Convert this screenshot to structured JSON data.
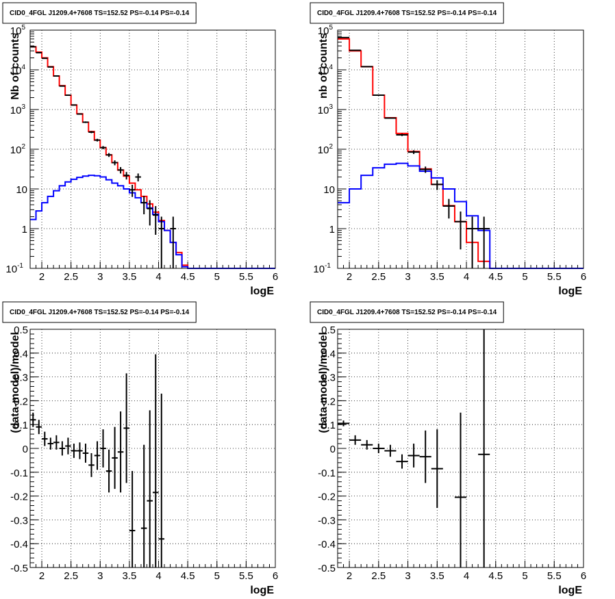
{
  "chart_data": [
    {
      "type": "histogram",
      "title": "CID0_4FGL J1209.4+7608 TS=152.52 PS=-0.14 PS=-0.14",
      "xlabel": "logE",
      "ylabel": "Nb of counts",
      "xlim": [
        1.8,
        6.0
      ],
      "ylim": [
        0.1,
        100000
      ],
      "yscale": "log",
      "grid": true,
      "xticks": [
        "2",
        "2.5",
        "3",
        "3.5",
        "4",
        "4.5",
        "5",
        "5.5",
        "6"
      ],
      "yticks": [
        "10^-1",
        "1",
        "10",
        "10^2",
        "10^3",
        "10^4",
        "10^5"
      ],
      "series": [
        {
          "color": "#ff0000",
          "bin_edges": [
            1.8,
            1.9,
            2.0,
            2.1,
            2.2,
            2.3,
            2.4,
            2.5,
            2.6,
            2.7,
            2.8,
            2.9,
            3.0,
            3.1,
            3.2,
            3.3,
            3.4,
            3.5,
            3.6,
            3.7,
            3.8,
            3.9,
            4.0,
            4.1,
            4.2,
            4.3,
            4.4,
            4.5,
            4.6,
            4.7,
            6.0
          ],
          "values": [
            38000,
            28000,
            20000,
            12000,
            7000,
            4000,
            2300,
            1300,
            780,
            480,
            280,
            170,
            110,
            72,
            46,
            30,
            21,
            14,
            9.5,
            6.5,
            4.2,
            2.6,
            1.6,
            0.9,
            0.45,
            0.25,
            0.12,
            0.1,
            0.1,
            0.1
          ]
        },
        {
          "color": "#0000ff",
          "bin_edges": [
            1.8,
            1.9,
            2.0,
            2.1,
            2.2,
            2.3,
            2.4,
            2.5,
            2.6,
            2.7,
            2.8,
            2.9,
            3.0,
            3.1,
            3.2,
            3.3,
            3.4,
            3.5,
            3.6,
            3.7,
            3.8,
            3.9,
            4.0,
            4.1,
            4.2,
            4.3,
            4.4,
            4.5,
            4.6,
            4.7,
            6.0
          ],
          "values": [
            1.7,
            2.8,
            4.5,
            6.5,
            9,
            12,
            15,
            17.5,
            19.5,
            21,
            22,
            21.5,
            20,
            17,
            14,
            12,
            10,
            8,
            6,
            4.5,
            3.3,
            2.3,
            1.5,
            0.9,
            0.45,
            0.22,
            0.11,
            0.1,
            0.1,
            0.1
          ]
        },
        {
          "color": "#000000",
          "marker": "errorbar",
          "x": [
            1.85,
            1.95,
            2.05,
            2.15,
            2.25,
            2.35,
            2.45,
            2.55,
            2.65,
            2.75,
            2.85,
            2.95,
            3.05,
            3.15,
            3.25,
            3.35,
            3.45,
            3.55,
            3.65,
            3.75,
            3.85,
            3.95,
            4.05,
            4.25
          ],
          "y": [
            38000,
            27000,
            19500,
            11800,
            7000,
            3900,
            2300,
            1300,
            770,
            480,
            270,
            170,
            110,
            72,
            46,
            30,
            22,
            9.5,
            20,
            4.5,
            3.2,
            2.2,
            1.0,
            1.0
          ],
          "y_err": [
            200,
            160,
            140,
            110,
            85,
            62,
            48,
            36,
            28,
            22,
            16,
            13,
            10,
            8,
            6.5,
            5.5,
            4.7,
            3.2,
            4.5,
            2.2,
            2.0,
            1.5,
            1.0,
            1.0
          ]
        }
      ]
    },
    {
      "type": "histogram",
      "title": "CID0_4FGL J1209.4+7608 TS=152.52 PS=-0.14 PS=-0.14",
      "xlabel": "logE",
      "ylabel": "nb of counts",
      "xlim": [
        1.8,
        6.0
      ],
      "ylim": [
        0.1,
        100000
      ],
      "yscale": "log",
      "grid": true,
      "xticks": [
        "2",
        "2.5",
        "3",
        "3.5",
        "4",
        "4.5",
        "5",
        "5.5",
        "6"
      ],
      "yticks": [
        "10^-1",
        "1",
        "10",
        "10^2",
        "10^3",
        "10^4",
        "10^5"
      ],
      "series": [
        {
          "color": "#ff0000",
          "bin_edges": [
            1.8,
            2.0,
            2.2,
            2.4,
            2.6,
            2.8,
            3.0,
            3.2,
            3.4,
            3.6,
            3.8,
            4.0,
            4.2,
            4.4,
            4.6,
            6.0
          ],
          "values": [
            60000,
            30000,
            12000,
            2300,
            620,
            250,
            88,
            32,
            13,
            3.8,
            1.5,
            0.45,
            0.15,
            0.1,
            0.1
          ]
        },
        {
          "color": "#0000ff",
          "bin_edges": [
            1.8,
            2.0,
            2.2,
            2.4,
            2.6,
            2.8,
            3.0,
            3.2,
            3.4,
            3.6,
            3.8,
            4.0,
            4.2,
            4.4,
            4.6,
            6.0
          ],
          "values": [
            4.5,
            10,
            22,
            34,
            42,
            44,
            38,
            28,
            19,
            10,
            4.8,
            2.1,
            0.9,
            0.1,
            0.1
          ]
        },
        {
          "color": "#000000",
          "marker": "errorbar",
          "x": [
            1.9,
            2.1,
            2.3,
            2.5,
            2.7,
            2.9,
            3.1,
            3.3,
            3.5,
            3.7,
            3.9,
            4.1,
            4.3
          ],
          "y": [
            65000,
            31000,
            12000,
            2300,
            610,
            230,
            85,
            31,
            13,
            3.7,
            1.5,
            1.0,
            1.0
          ],
          "y_err": [
            250,
            175,
            110,
            48,
            25,
            15,
            9.2,
            5.6,
            3.6,
            1.9,
            1.2,
            1.0,
            1.0
          ]
        }
      ]
    },
    {
      "type": "scatter",
      "title": "CID0_4FGL J1209.4+7608 TS=152.52 PS=-0.14 PS=-0.14",
      "xlabel": "logE",
      "ylabel": "(data-model)/model",
      "xlim": [
        1.8,
        6.0
      ],
      "ylim": [
        -0.5,
        0.5
      ],
      "grid": true,
      "xticks": [
        "2",
        "2.5",
        "3",
        "3.5",
        "4",
        "4.5",
        "5",
        "5.5",
        "6"
      ],
      "yticks": [
        "-0.5",
        "-0.4",
        "-0.3",
        "-0.2",
        "-0.1",
        "0",
        "0.1",
        "0.2",
        "0.3",
        "0.4",
        "0.5"
      ],
      "series": [
        {
          "color": "#000000",
          "marker": "errorbar",
          "x": [
            1.85,
            1.95,
            2.05,
            2.15,
            2.25,
            2.35,
            2.45,
            2.55,
            2.65,
            2.75,
            2.85,
            2.95,
            3.05,
            3.15,
            3.25,
            3.35,
            3.45,
            3.55,
            3.75,
            3.85,
            3.95,
            4.05
          ],
          "y": [
            0.12,
            0.09,
            0.04,
            0.02,
            0.025,
            0.0,
            0.01,
            -0.01,
            -0.01,
            -0.02,
            -0.07,
            -0.03,
            0.0,
            -0.095,
            -0.04,
            -0.015,
            0.085,
            -0.345,
            -0.335,
            -0.22,
            -0.185,
            -0.38
          ],
          "y_err": [
            0.03,
            0.03,
            0.03,
            0.025,
            0.03,
            0.03,
            0.035,
            0.03,
            0.035,
            0.04,
            0.05,
            0.06,
            0.08,
            0.09,
            0.13,
            0.17,
            0.23,
            0.25,
            0.35,
            0.38,
            0.58,
            0.61
          ]
        }
      ]
    },
    {
      "type": "scatter",
      "title": "CID0_4FGL J1209.4+7608 TS=152.52 PS=-0.14 PS=-0.14",
      "xlabel": "logE",
      "ylabel": "(data-model)/model",
      "xlim": [
        1.8,
        6.0
      ],
      "ylim": [
        -0.5,
        0.5
      ],
      "grid": true,
      "xticks": [
        "2",
        "2.5",
        "3",
        "3.5",
        "4",
        "4.5",
        "5",
        "5.5",
        "6"
      ],
      "yticks": [
        "-0.5",
        "-0.4",
        "-0.3",
        "-0.2",
        "-0.1",
        "0",
        "0.1",
        "0.2",
        "0.3",
        "0.4",
        "0.5"
      ],
      "series": [
        {
          "color": "#000000",
          "marker": "errorbar",
          "x": [
            1.9,
            2.1,
            2.3,
            2.5,
            2.7,
            2.9,
            3.1,
            3.3,
            3.5,
            3.9,
            4.3
          ],
          "y": [
            0.105,
            0.035,
            0.015,
            0.0,
            -0.01,
            -0.055,
            -0.03,
            -0.035,
            -0.085,
            -0.205,
            -0.025
          ],
          "y_err": [
            0.012,
            0.02,
            0.02,
            0.02,
            0.025,
            0.03,
            0.05,
            0.11,
            0.165,
            0.355,
            0.7
          ]
        }
      ]
    }
  ]
}
